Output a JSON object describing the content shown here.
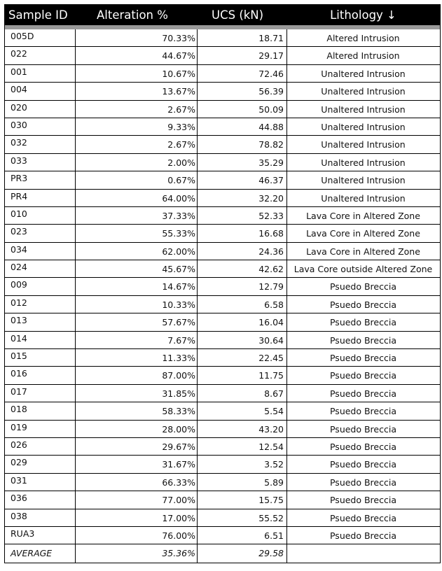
{
  "headers": {
    "sample_id": "Sample ID",
    "alteration": "Alteration %",
    "ucs": "UCS (kN)",
    "lithology": "Lithology ↓"
  },
  "rows": [
    {
      "id": "005D",
      "alt": "70.33%",
      "ucs": "18.71",
      "lith": "Altered Intrusion"
    },
    {
      "id": "022",
      "alt": "44.67%",
      "ucs": "29.17",
      "lith": "Altered Intrusion"
    },
    {
      "id": "001",
      "alt": "10.67%",
      "ucs": "72.46",
      "lith": "Unaltered Intrusion"
    },
    {
      "id": "004",
      "alt": "13.67%",
      "ucs": "56.39",
      "lith": "Unaltered Intrusion"
    },
    {
      "id": "020",
      "alt": "2.67%",
      "ucs": "50.09",
      "lith": "Unaltered Intrusion"
    },
    {
      "id": "030",
      "alt": "9.33%",
      "ucs": "44.88",
      "lith": "Unaltered Intrusion"
    },
    {
      "id": "032",
      "alt": "2.67%",
      "ucs": "78.82",
      "lith": "Unaltered Intrusion"
    },
    {
      "id": "033",
      "alt": "2.00%",
      "ucs": "35.29",
      "lith": "Unaltered Intrusion"
    },
    {
      "id": "PR3",
      "alt": "0.67%",
      "ucs": "46.37",
      "lith": "Unaltered Intrusion"
    },
    {
      "id": "PR4",
      "alt": "64.00%",
      "ucs": "32.20",
      "lith": "Unaltered Intrusion"
    },
    {
      "id": "010",
      "alt": "37.33%",
      "ucs": "52.33",
      "lith": "Lava Core in Altered Zone"
    },
    {
      "id": "023",
      "alt": "55.33%",
      "ucs": "16.68",
      "lith": "Lava Core in Altered Zone"
    },
    {
      "id": "034",
      "alt": "62.00%",
      "ucs": "24.36",
      "lith": "Lava Core in Altered Zone"
    },
    {
      "id": "024",
      "alt": "45.67%",
      "ucs": "42.62",
      "lith": "Lava Core outside Altered Zone"
    },
    {
      "id": "009",
      "alt": "14.67%",
      "ucs": "12.79",
      "lith": "Psuedo Breccia"
    },
    {
      "id": "012",
      "alt": "10.33%",
      "ucs": "6.58",
      "lith": "Psuedo Breccia"
    },
    {
      "id": "013",
      "alt": "57.67%",
      "ucs": "16.04",
      "lith": "Psuedo Breccia"
    },
    {
      "id": "014",
      "alt": "7.67%",
      "ucs": "30.64",
      "lith": "Psuedo Breccia"
    },
    {
      "id": "015",
      "alt": "11.33%",
      "ucs": "22.45",
      "lith": "Psuedo Breccia"
    },
    {
      "id": "016",
      "alt": "87.00%",
      "ucs": "11.75",
      "lith": "Psuedo Breccia"
    },
    {
      "id": "017",
      "alt": "31.85%",
      "ucs": "8.67",
      "lith": "Psuedo Breccia"
    },
    {
      "id": "018",
      "alt": "58.33%",
      "ucs": "5.54",
      "lith": "Psuedo Breccia"
    },
    {
      "id": "019",
      "alt": "28.00%",
      "ucs": "43.20",
      "lith": "Psuedo Breccia"
    },
    {
      "id": "026",
      "alt": "29.67%",
      "ucs": "12.54",
      "lith": "Psuedo Breccia"
    },
    {
      "id": "029",
      "alt": "31.67%",
      "ucs": "3.52",
      "lith": "Psuedo Breccia"
    },
    {
      "id": "031",
      "alt": "66.33%",
      "ucs": "5.89",
      "lith": "Psuedo Breccia"
    },
    {
      "id": "036",
      "alt": "77.00%",
      "ucs": "15.75",
      "lith": "Psuedo Breccia"
    },
    {
      "id": "038",
      "alt": "17.00%",
      "ucs": "55.52",
      "lith": "Psuedo Breccia"
    },
    {
      "id": "RUA3",
      "alt": "76.00%",
      "ucs": "6.51",
      "lith": "Psuedo Breccia"
    }
  ],
  "average": {
    "label": "AVERAGE",
    "alt": "35.36%",
    "ucs": "29.58",
    "lith": ""
  },
  "colors": {
    "header_bg": "#000000",
    "header_text": "#ffffff",
    "band": "#9a9a9a"
  }
}
